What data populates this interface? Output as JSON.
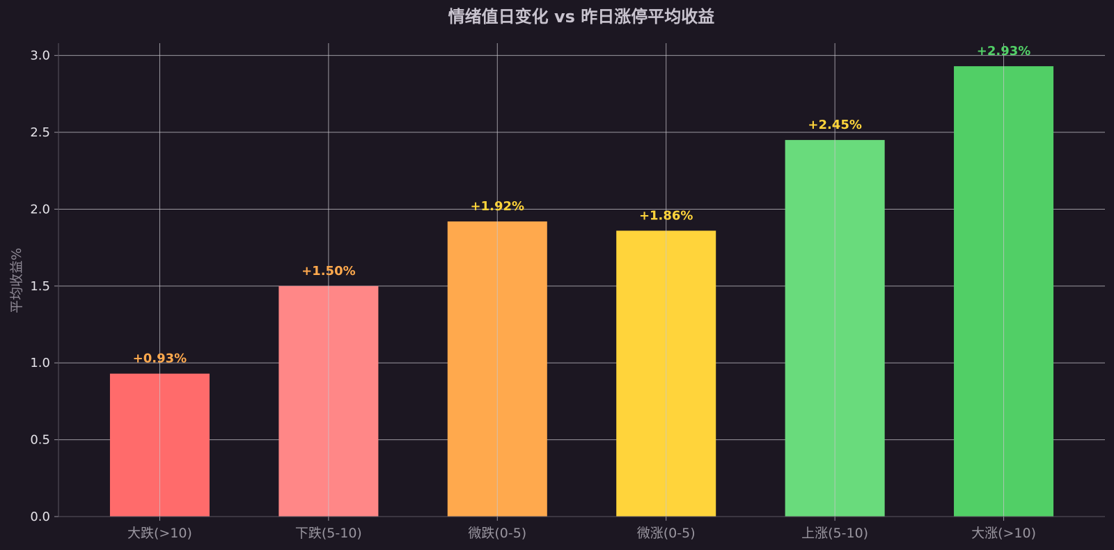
{
  "chart_data": {
    "type": "bar",
    "title": "情绪值日变化 vs 昨日涨停平均收益",
    "xlabel": "",
    "ylabel": "平均收益%",
    "ylim": [
      0,
      3.08
    ],
    "yticks": [
      "0.0",
      "0.5",
      "1.0",
      "1.5",
      "2.0",
      "2.5",
      "3.0"
    ],
    "grid": true,
    "categories": [
      "大跌(>10)",
      "下跌(5-10)",
      "微跌(0-5)",
      "微涨(0-5)",
      "上涨(5-10)",
      "大涨(>10)"
    ],
    "values": [
      0.93,
      1.5,
      1.92,
      1.86,
      2.45,
      2.93
    ],
    "data_labels": [
      "+0.93%",
      "+1.50%",
      "+1.92%",
      "+1.86%",
      "+2.45%",
      "+2.93%"
    ],
    "bar_colors": [
      "#ff6b6b",
      "#ff8787",
      "#ffa94d",
      "#ffd43b",
      "#69db7c",
      "#51cf66"
    ],
    "label_colors": [
      "#ffa94d",
      "#ffa94d",
      "#ffd43b",
      "#ffd43b",
      "#ffd43b",
      "#51cf66"
    ]
  },
  "theme": {
    "background": "#1c1722",
    "grid": "#c8c6cc",
    "title": "#c9c4cf",
    "tick_label": "#e6e4ea",
    "category_label": "#9a96a0",
    "axis_label": "#8f8a96"
  }
}
